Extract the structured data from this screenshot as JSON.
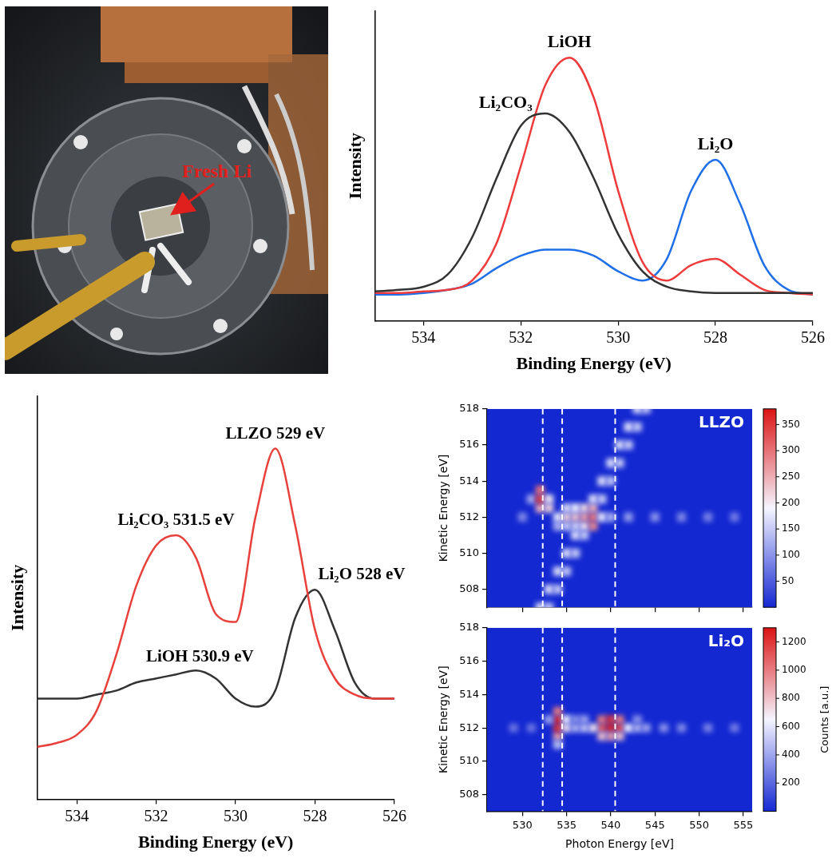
{
  "photo": {
    "label": "Fresh Li"
  },
  "chart_data": [
    {
      "type": "line",
      "x": [
        535,
        534.5,
        534,
        533.5,
        533,
        532.5,
        532,
        531.5,
        531,
        530.5,
        530,
        529.5,
        529,
        528.5,
        528,
        527.5,
        527,
        526.5,
        526
      ],
      "series": [
        {
          "name": "Li₂CO₃",
          "color": "#333333",
          "values": [
            0.095,
            0.1,
            0.11,
            0.15,
            0.27,
            0.46,
            0.63,
            0.67,
            0.61,
            0.46,
            0.28,
            0.16,
            0.11,
            0.095,
            0.09,
            0.09,
            0.09,
            0.09,
            0.09
          ]
        },
        {
          "name": "LiOH",
          "color": "#ee3b3b",
          "values": [
            0.09,
            0.09,
            0.095,
            0.1,
            0.13,
            0.25,
            0.5,
            0.76,
            0.85,
            0.72,
            0.42,
            0.19,
            0.13,
            0.18,
            0.2,
            0.15,
            0.1,
            0.09,
            0.085
          ]
        },
        {
          "name": "Li₂O",
          "color": "#1f6fe8",
          "values": [
            0.085,
            0.085,
            0.09,
            0.1,
            0.12,
            0.17,
            0.21,
            0.23,
            0.23,
            0.21,
            0.16,
            0.13,
            0.2,
            0.42,
            0.52,
            0.38,
            0.18,
            0.1,
            0.085
          ]
        }
      ],
      "x_label": "Binding Energy (eV)",
      "y_label": "Intensity",
      "xlim": [
        535,
        526
      ],
      "xticks": [
        534,
        532,
        530,
        528,
        526
      ],
      "ylim": [
        0,
        1
      ],
      "tick_labels": "x",
      "grid": false
    },
    {
      "type": "line",
      "x": [
        535,
        534.5,
        534,
        533.5,
        533,
        532.5,
        532,
        531.5,
        531,
        530.5,
        530,
        529.5,
        529,
        528.5,
        528,
        527.5,
        527,
        526.5,
        526
      ],
      "series": [
        {
          "color": "#e8413c",
          "values": [
            0.13,
            0.14,
            0.16,
            0.22,
            0.36,
            0.53,
            0.63,
            0.655,
            0.6,
            0.46,
            0.44,
            0.7,
            0.87,
            0.68,
            0.42,
            0.3,
            0.26,
            0.25,
            0.25
          ]
        },
        {
          "color": "#333333",
          "values": [
            0.25,
            0.25,
            0.25,
            0.26,
            0.27,
            0.29,
            0.3,
            0.31,
            0.32,
            0.3,
            0.25,
            0.23,
            0.27,
            0.45,
            0.52,
            0.42,
            0.29,
            0.25,
            0.25
          ]
        }
      ],
      "annotations": [
        {
          "text": "Li₂CO₃ 531.5 eV",
          "x": 531.5,
          "series": 0
        },
        {
          "text": "LLZO 529 eV",
          "x": 529,
          "series": 0
        },
        {
          "text": "LiOH 530.9 eV",
          "x": 530.9,
          "series": 1
        },
        {
          "text": "Li₂O 528 eV",
          "x": 528,
          "series": 1
        }
      ],
      "x_label": "Binding Energy (eV)",
      "y_label": "Intensity",
      "xlim": [
        535,
        526
      ],
      "xticks": [
        534,
        532,
        530,
        528,
        526
      ],
      "ylim": [
        0,
        1
      ],
      "tick_labels": "x",
      "grid": false
    },
    {
      "type": "heatmap",
      "title": "LLZO",
      "y_label": "Kinetic Energy [eV]",
      "xlim": [
        526,
        556
      ],
      "xticks": [
        530,
        535,
        540,
        545,
        550,
        555
      ],
      "ylim": [
        507,
        518
      ],
      "yticks": [
        508,
        510,
        512,
        514,
        516,
        518
      ],
      "tick_labels": "y",
      "grid": false,
      "vlines": [
        532.3,
        534.5,
        540.5
      ],
      "colorbar": {
        "range": [
          0,
          380
        ],
        "ticks": [
          50,
          100,
          150,
          200,
          250,
          300,
          350
        ]
      },
      "cells": [
        [
          531,
          513,
          120
        ],
        [
          532,
          512.5,
          250
        ],
        [
          532,
          513,
          340
        ],
        [
          532,
          513.5,
          300
        ],
        [
          533,
          512.5,
          220
        ],
        [
          533,
          513,
          200
        ],
        [
          534,
          511.5,
          130
        ],
        [
          534,
          512,
          180
        ],
        [
          535,
          511.5,
          150
        ],
        [
          535,
          512,
          220
        ],
        [
          535,
          512.5,
          170
        ],
        [
          536,
          511.5,
          160
        ],
        [
          536,
          512,
          230
        ],
        [
          536,
          512.5,
          190
        ],
        [
          537,
          511.5,
          200
        ],
        [
          537,
          512,
          260
        ],
        [
          537,
          512.5,
          210
        ],
        [
          538,
          511.5,
          280
        ],
        [
          538,
          512,
          300
        ],
        [
          538,
          512.5,
          250
        ],
        [
          539,
          512,
          180
        ],
        [
          530,
          512,
          90
        ],
        [
          540,
          512,
          130
        ],
        [
          542,
          512,
          110
        ],
        [
          545,
          512,
          100
        ],
        [
          548,
          512,
          90
        ],
        [
          551,
          512,
          85
        ],
        [
          554,
          512,
          80
        ],
        [
          532,
          507,
          170
        ],
        [
          533,
          508,
          170
        ],
        [
          534,
          509,
          170
        ],
        [
          535,
          510,
          170
        ],
        [
          536,
          511,
          170
        ],
        [
          538,
          513,
          170
        ],
        [
          539,
          514,
          170
        ],
        [
          540,
          515,
          170
        ],
        [
          541,
          516,
          170
        ],
        [
          542,
          517,
          170
        ],
        [
          543,
          518,
          170
        ],
        [
          533,
          507,
          150
        ],
        [
          534,
          508,
          150
        ],
        [
          535,
          509,
          150
        ],
        [
          536,
          510,
          150
        ],
        [
          537,
          511,
          150
        ],
        [
          539,
          513,
          150
        ],
        [
          540,
          514,
          150
        ],
        [
          541,
          515,
          150
        ],
        [
          542,
          516,
          150
        ],
        [
          543,
          517,
          150
        ],
        [
          544,
          518,
          150
        ]
      ]
    },
    {
      "type": "heatmap",
      "title": "Li₂O",
      "x_label": "Photon Energy [eV]",
      "y_label": "Kinetic Energy [eV]",
      "xlim": [
        526,
        556
      ],
      "xticks": [
        530,
        535,
        540,
        545,
        550,
        555
      ],
      "ylim": [
        507,
        518
      ],
      "yticks": [
        508,
        510,
        512,
        514,
        516,
        518
      ],
      "grid": false,
      "vlines": [
        532.3,
        534.5,
        540.5
      ],
      "colorbar": {
        "label": "Counts [a.u.]",
        "range": [
          0,
          1300
        ],
        "ticks": [
          200,
          400,
          600,
          800,
          1000,
          1200
        ]
      },
      "cells": [
        [
          534,
          511.5,
          900
        ],
        [
          534,
          512,
          1200
        ],
        [
          534,
          512.5,
          1250
        ],
        [
          534,
          513,
          1000
        ],
        [
          535,
          512,
          700
        ],
        [
          535,
          512.5,
          650
        ],
        [
          533,
          512.5,
          400
        ],
        [
          534,
          511,
          500
        ],
        [
          539,
          512,
          1100
        ],
        [
          540,
          512,
          1250
        ],
        [
          541,
          512,
          1150
        ],
        [
          539,
          512.5,
          1000
        ],
        [
          540,
          512.5,
          1200
        ],
        [
          541,
          512.5,
          1000
        ],
        [
          540,
          511.5,
          900
        ],
        [
          539,
          511.5,
          800
        ],
        [
          541,
          511.5,
          800
        ],
        [
          538,
          512,
          700
        ],
        [
          542,
          512,
          650
        ],
        [
          536,
          512,
          450
        ],
        [
          537,
          512,
          500
        ],
        [
          543,
          512,
          450
        ],
        [
          544,
          512,
          400
        ],
        [
          546,
          512,
          350
        ],
        [
          548,
          512,
          320
        ],
        [
          551,
          512,
          300
        ],
        [
          554,
          512,
          280
        ],
        [
          531,
          512,
          250
        ],
        [
          529,
          512,
          250
        ],
        [
          536,
          512.5,
          350
        ],
        [
          537,
          512.5,
          400
        ],
        [
          543,
          512.5,
          350
        ]
      ]
    }
  ]
}
